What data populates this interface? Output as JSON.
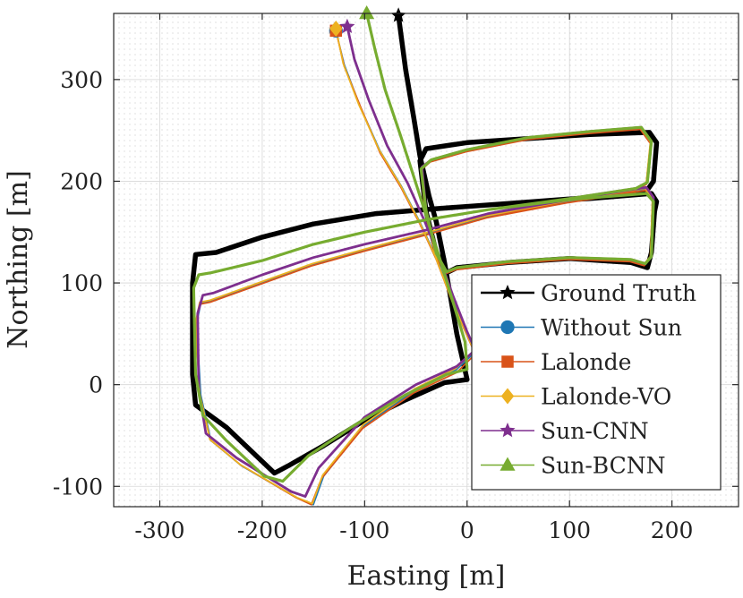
{
  "chart_data": {
    "type": "line",
    "title": "",
    "xlabel": "Easting [m]",
    "ylabel": "Northing [m]",
    "xlim": [
      -345,
      265
    ],
    "ylim": [
      -120,
      365
    ],
    "xticks": [
      -300,
      -200,
      -100,
      0,
      100,
      200
    ],
    "yticks": [
      -100,
      0,
      100,
      200,
      300
    ],
    "xtick_labels": [
      "-300",
      "-200",
      "-100",
      "0",
      "100",
      "200"
    ],
    "ytick_labels": [
      "-100",
      "0",
      "100",
      "200",
      "300"
    ],
    "grid": "dotted minor grid",
    "legend_position": "bottom-right",
    "series": [
      {
        "name": "Ground Truth",
        "color": "#000000",
        "marker": "star",
        "marker_at": [
          -67,
          363
        ],
        "points": [
          [
            -67,
            363
          ],
          [
            -60,
            310
          ],
          [
            -52,
            262
          ],
          [
            -46,
            225
          ],
          [
            -37,
            185
          ],
          [
            -30,
            160
          ],
          [
            -22,
            120
          ],
          [
            -16,
            85
          ],
          [
            -10,
            50
          ],
          [
            0,
            5
          ],
          [
            -22,
            2
          ],
          [
            -60,
            -15
          ],
          [
            -100,
            -35
          ],
          [
            -140,
            -60
          ],
          [
            -175,
            -80
          ],
          [
            -188,
            -87
          ],
          [
            -235,
            -42
          ],
          [
            -265,
            -20
          ],
          [
            -268,
            10
          ],
          [
            -268,
            100
          ],
          [
            -265,
            128
          ],
          [
            -245,
            130
          ],
          [
            -200,
            145
          ],
          [
            -150,
            158
          ],
          [
            -90,
            168
          ],
          [
            -30,
            173
          ],
          [
            40,
            178
          ],
          [
            120,
            183
          ],
          [
            180,
            188
          ],
          [
            185,
            180
          ],
          [
            183,
            170
          ],
          [
            180,
            130
          ],
          [
            176,
            115
          ],
          [
            160,
            120
          ],
          [
            100,
            124
          ],
          [
            40,
            120
          ],
          [
            -10,
            115
          ],
          [
            -20,
            110
          ],
          [
            -30,
            130
          ],
          [
            -40,
            170
          ],
          [
            -46,
            220
          ],
          [
            -40,
            232
          ],
          [
            0,
            238
          ],
          [
            60,
            242
          ],
          [
            120,
            246
          ],
          [
            178,
            248
          ],
          [
            185,
            238
          ],
          [
            182,
            200
          ],
          [
            175,
            190
          ],
          [
            120,
            184
          ],
          [
            40,
            178
          ],
          [
            -30,
            173
          ]
        ]
      },
      {
        "name": "Without Sun",
        "color": "#1f77b4",
        "marker": "circle",
        "marker_at": [
          -128,
          348
        ],
        "points": [
          [
            -128,
            348
          ],
          [
            -120,
            315
          ],
          [
            -105,
            275
          ],
          [
            -85,
            230
          ],
          [
            -64,
            195
          ],
          [
            -46,
            160
          ],
          [
            -30,
            125
          ],
          [
            -15,
            85
          ],
          [
            0,
            50
          ],
          [
            8,
            32
          ],
          [
            -10,
            15
          ],
          [
            -50,
            -5
          ],
          [
            -100,
            -40
          ],
          [
            -140,
            -90
          ],
          [
            -150,
            -118
          ],
          [
            -165,
            -112
          ],
          [
            -220,
            -80
          ],
          [
            -250,
            -55
          ],
          [
            -260,
            -10
          ],
          [
            -264,
            60
          ],
          [
            -260,
            80
          ],
          [
            -250,
            82
          ],
          [
            -200,
            100
          ],
          [
            -150,
            118
          ],
          [
            -100,
            132
          ],
          [
            -40,
            148
          ],
          [
            20,
            165
          ],
          [
            100,
            180
          ],
          [
            175,
            192
          ],
          [
            182,
            182
          ],
          [
            180,
            125
          ],
          [
            174,
            118
          ],
          [
            160,
            122
          ],
          [
            100,
            124
          ],
          [
            40,
            120
          ],
          [
            -10,
            114
          ],
          [
            -20,
            110
          ],
          [
            -30,
            128
          ],
          [
            -40,
            170
          ],
          [
            -44,
            212
          ],
          [
            -35,
            220
          ],
          [
            0,
            230
          ],
          [
            60,
            242
          ],
          [
            120,
            248
          ],
          [
            170,
            252
          ],
          [
            180,
            238
          ],
          [
            176,
            198
          ],
          [
            165,
            192
          ],
          [
            100,
            182
          ],
          [
            20,
            165
          ],
          [
            -40,
            148
          ]
        ]
      },
      {
        "name": "Lalonde",
        "color": "#d95319",
        "marker": "square",
        "marker_at": [
          -128,
          348
        ],
        "points": [
          [
            -128,
            348
          ],
          [
            -120,
            313
          ],
          [
            -104,
            273
          ],
          [
            -85,
            228
          ],
          [
            -64,
            193
          ],
          [
            -46,
            158
          ],
          [
            -30,
            123
          ],
          [
            -15,
            83
          ],
          [
            0,
            48
          ],
          [
            8,
            30
          ],
          [
            -10,
            12
          ],
          [
            -52,
            -8
          ],
          [
            -102,
            -43
          ],
          [
            -142,
            -92
          ],
          [
            -152,
            -118
          ],
          [
            -167,
            -111
          ],
          [
            -221,
            -79
          ],
          [
            -251,
            -54
          ],
          [
            -261,
            -9
          ],
          [
            -265,
            60
          ],
          [
            -261,
            79
          ],
          [
            -251,
            81
          ],
          [
            -201,
            99
          ],
          [
            -151,
            117
          ],
          [
            -101,
            131
          ],
          [
            -41,
            147
          ],
          [
            19,
            164
          ],
          [
            99,
            179
          ],
          [
            174,
            191
          ],
          [
            181,
            181
          ],
          [
            179,
            124
          ],
          [
            173,
            117
          ],
          [
            159,
            121
          ],
          [
            99,
            123
          ],
          [
            39,
            119
          ],
          [
            -11,
            113
          ],
          [
            -21,
            109
          ],
          [
            -31,
            127
          ],
          [
            -41,
            169
          ],
          [
            -45,
            211
          ],
          [
            -36,
            219
          ],
          [
            -1,
            229
          ],
          [
            59,
            241
          ],
          [
            119,
            247
          ],
          [
            169,
            251
          ],
          [
            179,
            237
          ],
          [
            175,
            197
          ],
          [
            164,
            191
          ],
          [
            99,
            181
          ],
          [
            19,
            164
          ],
          [
            -41,
            147
          ]
        ]
      },
      {
        "name": "Lalonde-VO",
        "color": "#edb120",
        "marker": "diamond",
        "marker_at": [
          -128,
          350
        ],
        "points": [
          [
            -128,
            350
          ],
          [
            -121,
            316
          ],
          [
            -106,
            276
          ],
          [
            -86,
            231
          ],
          [
            -65,
            196
          ],
          [
            -47,
            161
          ],
          [
            -31,
            126
          ],
          [
            -16,
            86
          ],
          [
            -1,
            51
          ],
          [
            7,
            33
          ],
          [
            -11,
            16
          ],
          [
            -51,
            -4
          ],
          [
            -101,
            -39
          ],
          [
            -141,
            -89
          ],
          [
            -151,
            -117
          ],
          [
            -166,
            -111
          ],
          [
            -221,
            -79
          ],
          [
            -251,
            -54
          ],
          [
            -261,
            -9
          ],
          [
            -265,
            61
          ],
          [
            -261,
            81
          ],
          [
            -251,
            83
          ],
          [
            -201,
            101
          ],
          [
            -151,
            119
          ],
          [
            -101,
            133
          ],
          [
            -41,
            149
          ],
          [
            19,
            166
          ],
          [
            99,
            181
          ],
          [
            174,
            193
          ],
          [
            181,
            183
          ],
          [
            179,
            126
          ],
          [
            173,
            119
          ],
          [
            159,
            123
          ],
          [
            99,
            125
          ],
          [
            39,
            121
          ],
          [
            -11,
            115
          ],
          [
            -21,
            111
          ],
          [
            -31,
            129
          ],
          [
            -41,
            171
          ],
          [
            -45,
            213
          ],
          [
            -36,
            221
          ],
          [
            -1,
            231
          ],
          [
            59,
            243
          ],
          [
            119,
            249
          ],
          [
            169,
            253
          ],
          [
            179,
            239
          ],
          [
            175,
            199
          ],
          [
            164,
            193
          ],
          [
            99,
            183
          ],
          [
            19,
            166
          ],
          [
            -41,
            149
          ]
        ]
      },
      {
        "name": "Sun-CNN",
        "color": "#7e2f8e",
        "marker": "star",
        "marker_at": [
          -117,
          352
        ],
        "points": [
          [
            -117,
            352
          ],
          [
            -110,
            320
          ],
          [
            -96,
            280
          ],
          [
            -78,
            235
          ],
          [
            -58,
            198
          ],
          [
            -42,
            162
          ],
          [
            -28,
            128
          ],
          [
            -14,
            88
          ],
          [
            0,
            52
          ],
          [
            8,
            34
          ],
          [
            -10,
            18
          ],
          [
            -50,
            0
          ],
          [
            -100,
            -32
          ],
          [
            -145,
            -82
          ],
          [
            -158,
            -110
          ],
          [
            -172,
            -105
          ],
          [
            -225,
            -72
          ],
          [
            -255,
            -48
          ],
          [
            -262,
            -5
          ],
          [
            -263,
            70
          ],
          [
            -258,
            88
          ],
          [
            -248,
            90
          ],
          [
            -200,
            108
          ],
          [
            -150,
            125
          ],
          [
            -100,
            138
          ],
          [
            -40,
            152
          ],
          [
            20,
            168
          ],
          [
            100,
            182
          ],
          [
            175,
            194
          ],
          [
            182,
            184
          ],
          [
            180,
            126
          ],
          [
            174,
            119
          ],
          [
            160,
            123
          ],
          [
            100,
            125
          ],
          [
            40,
            121
          ],
          [
            -10,
            115
          ],
          [
            -20,
            111
          ],
          [
            -30,
            129
          ],
          [
            -40,
            171
          ],
          [
            -44,
            214
          ],
          [
            -35,
            221
          ],
          [
            0,
            231
          ],
          [
            60,
            243
          ],
          [
            120,
            249
          ],
          [
            170,
            253
          ],
          [
            180,
            239
          ],
          [
            176,
            199
          ],
          [
            165,
            193
          ],
          [
            100,
            183
          ],
          [
            20,
            168
          ],
          [
            -40,
            152
          ]
        ]
      },
      {
        "name": "Sun-BCNN",
        "color": "#77ac30",
        "marker": "triangle",
        "marker_at": [
          -98,
          365
        ],
        "points": [
          [
            -98,
            365
          ],
          [
            -90,
            330
          ],
          [
            -80,
            290
          ],
          [
            -65,
            245
          ],
          [
            -50,
            198
          ],
          [
            -38,
            160
          ],
          [
            -26,
            122
          ],
          [
            -14,
            82
          ],
          [
            -2,
            42
          ],
          [
            0,
            15
          ],
          [
            -20,
            10
          ],
          [
            -60,
            -10
          ],
          [
            -110,
            -40
          ],
          [
            -155,
            -70
          ],
          [
            -180,
            -95
          ],
          [
            -198,
            -90
          ],
          [
            -235,
            -55
          ],
          [
            -258,
            -30
          ],
          [
            -265,
            10
          ],
          [
            -267,
            95
          ],
          [
            -262,
            108
          ],
          [
            -250,
            110
          ],
          [
            -200,
            122
          ],
          [
            -150,
            138
          ],
          [
            -100,
            150
          ],
          [
            -40,
            162
          ],
          [
            20,
            172
          ],
          [
            100,
            182
          ],
          [
            175,
            188
          ],
          [
            182,
            180
          ],
          [
            180,
            126
          ],
          [
            174,
            119
          ],
          [
            160,
            123
          ],
          [
            100,
            125
          ],
          [
            40,
            121
          ],
          [
            -10,
            115
          ],
          [
            -20,
            111
          ],
          [
            -30,
            129
          ],
          [
            -40,
            171
          ],
          [
            -45,
            212
          ],
          [
            -35,
            221
          ],
          [
            0,
            231
          ],
          [
            60,
            243
          ],
          [
            120,
            249
          ],
          [
            170,
            253
          ],
          [
            180,
            239
          ],
          [
            176,
            199
          ],
          [
            165,
            193
          ],
          [
            100,
            183
          ],
          [
            20,
            172
          ],
          [
            -40,
            162
          ]
        ]
      }
    ]
  }
}
